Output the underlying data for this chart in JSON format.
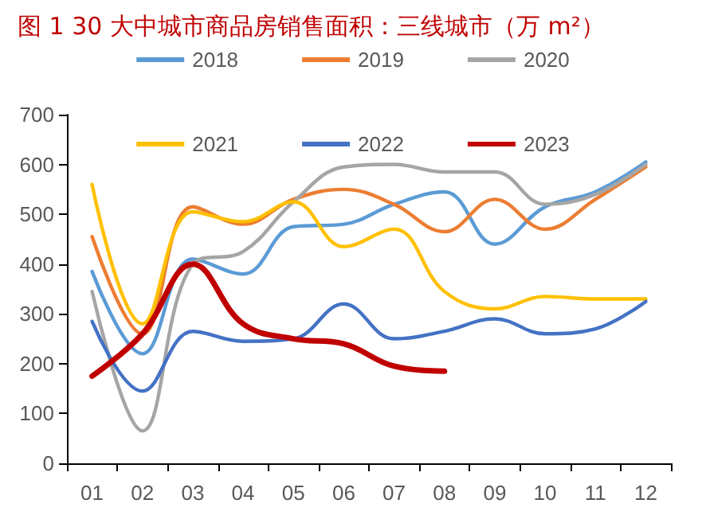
{
  "chart_data": {
    "type": "line",
    "title": "图 1 30 大中城市商品房销售面积：三线城市（万 m²）",
    "categories": [
      "01",
      "02",
      "03",
      "04",
      "05",
      "06",
      "07",
      "08",
      "09",
      "10",
      "11",
      "12"
    ],
    "series": [
      {
        "name": "2018",
        "color": "#5b9bd5",
        "values": [
          385,
          220,
          410,
          380,
          475,
          480,
          520,
          545,
          440,
          515,
          545,
          605
        ]
      },
      {
        "name": "2019",
        "color": "#ed7d31",
        "values": [
          455,
          260,
          515,
          480,
          530,
          550,
          520,
          465,
          530,
          470,
          530,
          595
        ]
      },
      {
        "name": "2020",
        "color": "#a5a5a5",
        "values": [
          345,
          65,
          400,
          425,
          525,
          595,
          600,
          585,
          585,
          520,
          540,
          600
        ]
      },
      {
        "name": "2021",
        "color": "#ffc000",
        "values": [
          560,
          280,
          505,
          485,
          525,
          435,
          470,
          345,
          310,
          335,
          330,
          330
        ]
      },
      {
        "name": "2022",
        "color": "#4472c4",
        "values": [
          285,
          145,
          265,
          245,
          250,
          320,
          250,
          265,
          290,
          260,
          270,
          325
        ]
      },
      {
        "name": "2023",
        "color": "#c00000",
        "values": [
          175,
          260,
          400,
          280,
          250,
          240,
          195,
          185,
          null,
          null,
          null,
          null
        ]
      }
    ],
    "ylim": [
      0,
      700
    ],
    "yticks": [
      0,
      100,
      200,
      300,
      400,
      500,
      600,
      700
    ],
    "grid": false,
    "legend": "top",
    "marker": "none",
    "line_style": "solid"
  }
}
